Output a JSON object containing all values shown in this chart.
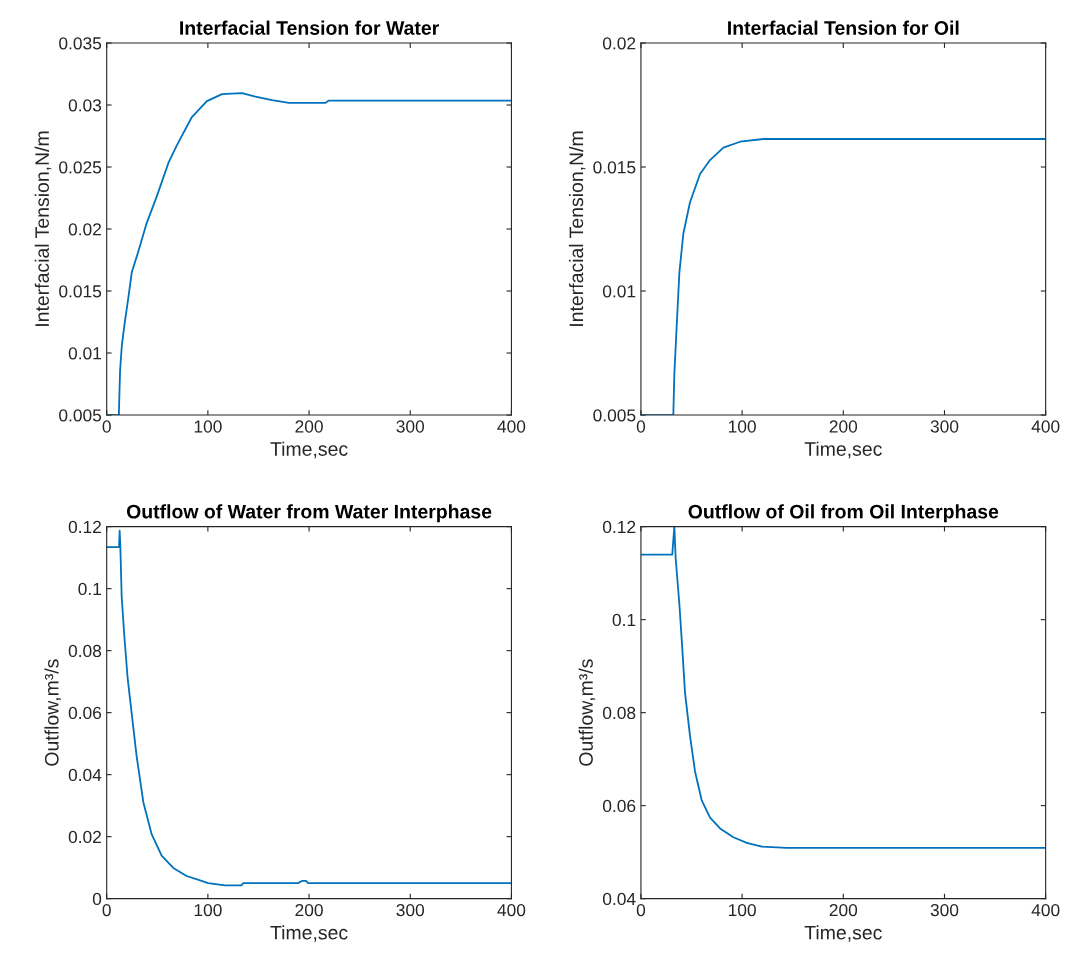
{
  "chart_data": [
    {
      "type": "line",
      "title": "Interfacial Tension for Water",
      "xlabel": "Time,sec",
      "ylabel": "Interfacial Tension,N/m",
      "xlim": [
        0,
        400
      ],
      "xticks": [
        0,
        100,
        200,
        300,
        400
      ],
      "ylim": [
        0.005,
        0.035
      ],
      "yticks": [
        0.005,
        0.01,
        0.015,
        0.02,
        0.025,
        0.03,
        0.035
      ],
      "grid": false,
      "legend": false,
      "series": [
        {
          "color": "#0072bd",
          "x": [
            0,
            11.5,
            12,
            13.2,
            14.9,
            17.5,
            21.5,
            24.8,
            31.4,
            39.6,
            49.5,
            61,
            69.3,
            84.2,
            99,
            114,
            133.7,
            147,
            163.4,
            180,
            216,
            219.5,
            400
          ],
          "values": [
            0.005,
            0.005,
            0.005,
            0.00855,
            0.01055,
            0.01225,
            0.01453,
            0.01652,
            0.01822,
            0.0205,
            0.02263,
            0.02533,
            0.02675,
            0.02903,
            0.03031,
            0.03088,
            0.03096,
            0.03068,
            0.03039,
            0.03017,
            0.03017,
            0.03036,
            0.03036
          ]
        }
      ]
    },
    {
      "type": "line",
      "title": "Interfacial Tension for Oil",
      "xlabel": "Time,sec",
      "ylabel": "Interfacial Tension,N/m",
      "xlim": [
        0,
        400
      ],
      "xticks": [
        0,
        100,
        200,
        300,
        400
      ],
      "ylim": [
        0.005,
        0.02
      ],
      "yticks": [
        0.005,
        0.01,
        0.015,
        0.02
      ],
      "grid": false,
      "legend": false,
      "series": [
        {
          "color": "#0072bd",
          "x": [
            0,
            31.4,
            32,
            33,
            35.3,
            38,
            41.9,
            48.5,
            58.4,
            68.3,
            81.5,
            98,
            121,
            400
          ],
          "values": [
            0.005,
            0.005,
            0.005,
            0.00664,
            0.00856,
            0.01075,
            0.01231,
            0.01358,
            0.01472,
            0.01528,
            0.01578,
            0.01602,
            0.01613,
            0.01613
          ]
        }
      ]
    },
    {
      "type": "line",
      "title": "Outflow of Water from Water Interphase",
      "xlabel": "Time,sec",
      "ylabel": "Outflow,m³/s",
      "xlim": [
        0,
        400
      ],
      "xticks": [
        0,
        100,
        200,
        300,
        400
      ],
      "ylim": [
        0,
        0.12
      ],
      "yticks": [
        0,
        0.02,
        0.04,
        0.06,
        0.08,
        0.1,
        0.12
      ],
      "grid": false,
      "legend": false,
      "series": [
        {
          "color": "#0072bd",
          "x": [
            0,
            12.2,
            12.8,
            13.5,
            14.8,
            17.4,
            20.7,
            24.7,
            29.6,
            36.2,
            44.4,
            54.3,
            65.8,
            79,
            93.8,
            100.3,
            116.8,
            133,
            135,
            189,
            193,
            197,
            199,
            400
          ],
          "values": [
            0.1134,
            0.1134,
            0.1187,
            0.1134,
            0.0974,
            0.0848,
            0.0711,
            0.0597,
            0.0459,
            0.0311,
            0.0208,
            0.0139,
            0.0099,
            0.0073,
            0.0057,
            0.005,
            0.0043,
            0.0043,
            0.005,
            0.005,
            0.0057,
            0.0057,
            0.005,
            0.005
          ]
        }
      ]
    },
    {
      "type": "line",
      "title": "Outflow of Oil from Oil Interphase",
      "xlabel": "Time,sec",
      "ylabel": "Outflow,m³/s",
      "xlim": [
        0,
        400
      ],
      "xticks": [
        0,
        100,
        200,
        300,
        400
      ],
      "ylim": [
        0.04,
        0.12
      ],
      "yticks": [
        0.04,
        0.06,
        0.08,
        0.1,
        0.12
      ],
      "grid": false,
      "legend": false,
      "series": [
        {
          "color": "#0072bd",
          "x": [
            0,
            31,
            31.5,
            33,
            34.3,
            38,
            40.3,
            43.6,
            48.5,
            53.5,
            60,
            68.3,
            78.2,
            91.4,
            104.6,
            119.5,
            144,
            400
          ],
          "values": [
            0.114,
            0.114,
            0.1156,
            0.12,
            0.1133,
            0.1033,
            0.0957,
            0.0842,
            0.075,
            0.0673,
            0.0612,
            0.0574,
            0.0551,
            0.0532,
            0.052,
            0.0512,
            0.0509,
            0.0509
          ]
        }
      ]
    }
  ]
}
